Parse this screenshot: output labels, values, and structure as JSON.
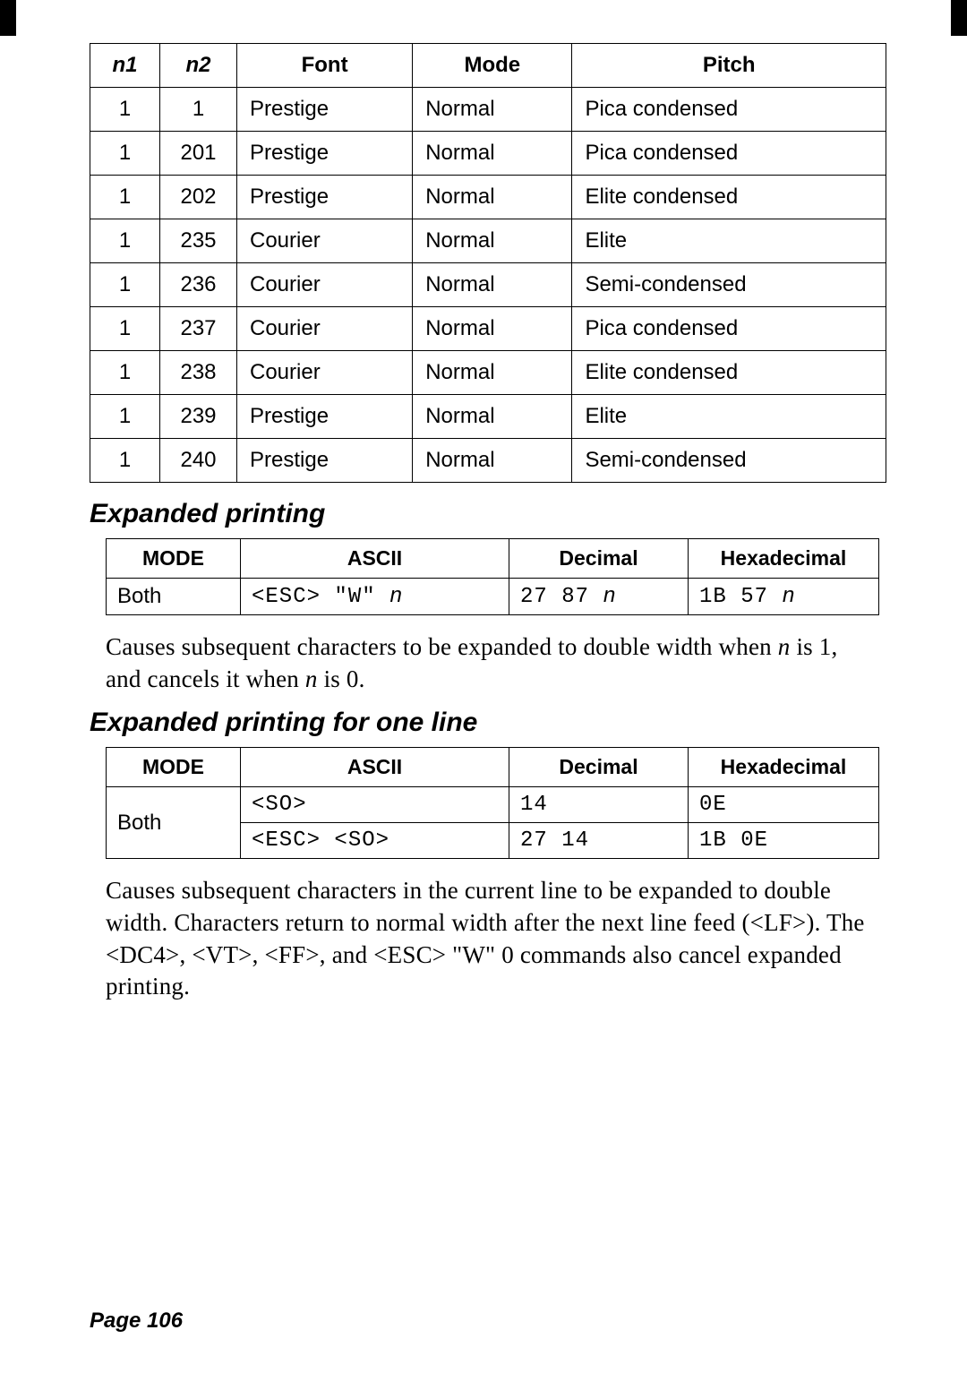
{
  "table1": {
    "headers": [
      "n1",
      "n2",
      "Font",
      "Mode",
      "Pitch"
    ],
    "rows": [
      [
        "1",
        "1",
        "Prestige",
        "Normal",
        "Pica condensed"
      ],
      [
        "1",
        "201",
        "Prestige",
        "Normal",
        "Pica condensed"
      ],
      [
        "1",
        "202",
        "Prestige",
        "Normal",
        "Elite condensed"
      ],
      [
        "1",
        "235",
        "Courier",
        "Normal",
        "Elite"
      ],
      [
        "1",
        "236",
        "Courier",
        "Normal",
        "Semi-condensed"
      ],
      [
        "1",
        "237",
        "Courier",
        "Normal",
        "Pica condensed"
      ],
      [
        "1",
        "238",
        "Courier",
        "Normal",
        "Elite condensed"
      ],
      [
        "1",
        "239",
        "Prestige",
        "Normal",
        "Elite"
      ],
      [
        "1",
        "240",
        "Prestige",
        "Normal",
        "Semi-condensed"
      ]
    ]
  },
  "section1": {
    "heading": "Expanded printing",
    "table": {
      "headers": [
        "MODE",
        "ASCII",
        "Decimal",
        "Hexadecimal"
      ],
      "mode": "Both",
      "ascii_pre": "<ESC> \"W\" ",
      "ascii_var": "n",
      "dec_pre": "27 87 ",
      "dec_var": "n",
      "hex_pre": "1B 57 ",
      "hex_var": "n"
    },
    "body_pre": "Causes subsequent characters to be expanded to double width when ",
    "body_var1": "n",
    "body_mid": " is 1, and cancels it when ",
    "body_var2": "n",
    "body_end": " is 0."
  },
  "section2": {
    "heading": "Expanded printing for one line",
    "table": {
      "headers": [
        "MODE",
        "ASCII",
        "Decimal",
        "Hexadecimal"
      ],
      "mode": "Both",
      "row1": {
        "ascii": "<SO>",
        "dec": "14",
        "hex": "0E"
      },
      "row2": {
        "ascii": "<ESC> <SO>",
        "dec": "27 14",
        "hex": "1B 0E"
      }
    },
    "body": "Causes subsequent characters in the current line to be expanded to double width. Characters return to normal width after the next line feed (<LF>). The <DC4>, <VT>, <FF>, and <ESC> \"W\" 0 commands also cancel expanded printing."
  },
  "pageLabel": "Page 106"
}
